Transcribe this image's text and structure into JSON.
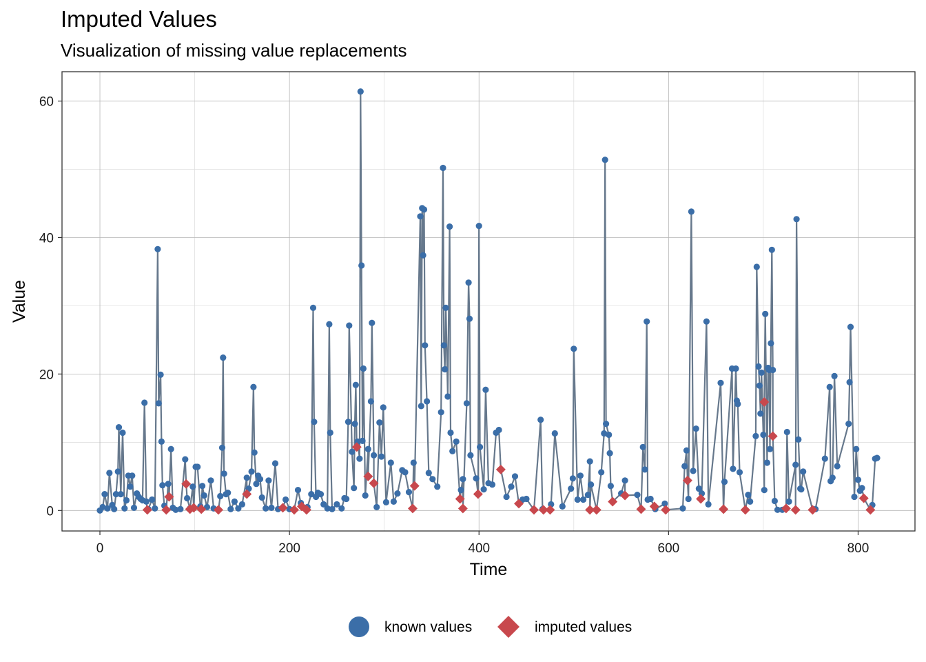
{
  "chart_data": {
    "type": "line",
    "title": "Imputed Values",
    "subtitle": "Visualization of missing value replacements",
    "xlabel": "Time",
    "ylabel": "Value",
    "xlim": [
      -40,
      860
    ],
    "ylim": [
      -3,
      64.3
    ],
    "x_ticks": [
      0,
      200,
      400,
      600,
      800
    ],
    "y_ticks": [
      0,
      20,
      40,
      60
    ],
    "grid": true,
    "legend_position": "bottom",
    "colors": {
      "known": "#3b6ea8",
      "imputed": "#c8484d",
      "line": "#66788c"
    },
    "series": [
      {
        "name": "known values",
        "marker": "circle",
        "points": [
          [
            0,
            0
          ],
          [
            3,
            0.5
          ],
          [
            5,
            2.4
          ],
          [
            8,
            0.3
          ],
          [
            10,
            5.5
          ],
          [
            13,
            0.8
          ],
          [
            15,
            0.2
          ],
          [
            17,
            2.4
          ],
          [
            19,
            5.7
          ],
          [
            20,
            12.2
          ],
          [
            22,
            2.4
          ],
          [
            24,
            11.4
          ],
          [
            26,
            0.3
          ],
          [
            28,
            1.5
          ],
          [
            30,
            5.1
          ],
          [
            32,
            3.5
          ],
          [
            34,
            5.1
          ],
          [
            36,
            0.4
          ],
          [
            39,
            2.5
          ],
          [
            41,
            2.0
          ],
          [
            43,
            1.7
          ],
          [
            45,
            1.5
          ],
          [
            47,
            15.8
          ],
          [
            49,
            1.3
          ],
          [
            51,
            0.2
          ],
          [
            55,
            1.6
          ],
          [
            58,
            0.3
          ],
          [
            61,
            38.3
          ],
          [
            62,
            15.7
          ],
          [
            64,
            19.9
          ],
          [
            65,
            10.1
          ],
          [
            66,
            3.7
          ],
          [
            68,
            0.7
          ],
          [
            72,
            3.9
          ],
          [
            75,
            9.0
          ],
          [
            77,
            0.4
          ],
          [
            80,
            0.1
          ],
          [
            85,
            0.2
          ],
          [
            90,
            7.5
          ],
          [
            92,
            1.8
          ],
          [
            95,
            0.3
          ],
          [
            98,
            3.5
          ],
          [
            101,
            6.4
          ],
          [
            103,
            6.4
          ],
          [
            106,
            0.6
          ],
          [
            108,
            3.6
          ],
          [
            110,
            2.2
          ],
          [
            113,
            0.5
          ],
          [
            117,
            4.4
          ],
          [
            120,
            0.3
          ],
          [
            127,
            2.1
          ],
          [
            129,
            9.2
          ],
          [
            130,
            22.4
          ],
          [
            131,
            5.4
          ],
          [
            133,
            2.4
          ],
          [
            135,
            2.6
          ],
          [
            138,
            0.2
          ],
          [
            142,
            1.3
          ],
          [
            146,
            0.3
          ],
          [
            150,
            0.9
          ],
          [
            155,
            4.8
          ],
          [
            157,
            3.2
          ],
          [
            160,
            5.7
          ],
          [
            162,
            18.1
          ],
          [
            163,
            8.5
          ],
          [
            165,
            3.9
          ],
          [
            167,
            5.1
          ],
          [
            169,
            4.6
          ],
          [
            171,
            1.9
          ],
          [
            175,
            0.3
          ],
          [
            178,
            4.4
          ],
          [
            181,
            0.4
          ],
          [
            185,
            6.9
          ],
          [
            188,
            0.2
          ],
          [
            196,
            1.6
          ],
          [
            200,
            0.2
          ],
          [
            209,
            3.0
          ],
          [
            212,
            1.1
          ],
          [
            219,
            0.5
          ],
          [
            223,
            2.4
          ],
          [
            225,
            29.7
          ],
          [
            226,
            13.0
          ],
          [
            228,
            2.0
          ],
          [
            230,
            2.6
          ],
          [
            233,
            2.4
          ],
          [
            236,
            0.9
          ],
          [
            240,
            0.3
          ],
          [
            242,
            27.3
          ],
          [
            243,
            11.4
          ],
          [
            245,
            0.2
          ],
          [
            250,
            0.9
          ],
          [
            255,
            0.3
          ],
          [
            258,
            1.8
          ],
          [
            260,
            1.7
          ],
          [
            262,
            13.0
          ],
          [
            263,
            27.1
          ],
          [
            266,
            8.6
          ],
          [
            268,
            3.3
          ],
          [
            269,
            12.7
          ],
          [
            270,
            18.4
          ],
          [
            272,
            10.1
          ],
          [
            274,
            7.6
          ],
          [
            275,
            61.4
          ],
          [
            276,
            35.9
          ],
          [
            277,
            10.2
          ],
          [
            278,
            20.8
          ],
          [
            280,
            2.2
          ],
          [
            283,
            9.0
          ],
          [
            286,
            16.0
          ],
          [
            287,
            27.5
          ],
          [
            289,
            8.1
          ],
          [
            292,
            0.5
          ],
          [
            295,
            12.9
          ],
          [
            297,
            7.9
          ],
          [
            299,
            15.1
          ],
          [
            302,
            1.2
          ],
          [
            307,
            7.0
          ],
          [
            310,
            1.3
          ],
          [
            314,
            2.5
          ],
          [
            319,
            5.9
          ],
          [
            322,
            5.6
          ],
          [
            326,
            2.7
          ],
          [
            331,
            7.0
          ],
          [
            338,
            43.1
          ],
          [
            339,
            15.3
          ],
          [
            340,
            44.3
          ],
          [
            341,
            37.4
          ],
          [
            342,
            44.1
          ],
          [
            343,
            24.2
          ],
          [
            345,
            16.0
          ],
          [
            347,
            5.5
          ],
          [
            351,
            4.6
          ],
          [
            356,
            3.5
          ],
          [
            360,
            14.4
          ],
          [
            362,
            50.2
          ],
          [
            363,
            24.2
          ],
          [
            364,
            20.7
          ],
          [
            365,
            29.7
          ],
          [
            367,
            16.7
          ],
          [
            369,
            41.6
          ],
          [
            370,
            11.4
          ],
          [
            372,
            8.7
          ],
          [
            376,
            10.1
          ],
          [
            381,
            3.0
          ],
          [
            383,
            4.6
          ],
          [
            387,
            15.7
          ],
          [
            389,
            33.4
          ],
          [
            390,
            28.1
          ],
          [
            391,
            8.1
          ],
          [
            397,
            4.7
          ],
          [
            400,
            41.7
          ],
          [
            401,
            9.3
          ],
          [
            405,
            3.1
          ],
          [
            407,
            17.7
          ],
          [
            410,
            4.0
          ],
          [
            414,
            3.8
          ],
          [
            418,
            11.4
          ],
          [
            421,
            11.8
          ],
          [
            429,
            2.0
          ],
          [
            434,
            3.5
          ],
          [
            438,
            5.0
          ],
          [
            446,
            1.6
          ],
          [
            450,
            1.7
          ],
          [
            465,
            13.3
          ],
          [
            467,
            0.2
          ],
          [
            476,
            0.9
          ],
          [
            480,
            11.3
          ],
          [
            488,
            0.6
          ],
          [
            497,
            3.2
          ],
          [
            499,
            4.7
          ],
          [
            500,
            23.7
          ],
          [
            504,
            1.6
          ],
          [
            507,
            5.1
          ],
          [
            510,
            1.6
          ],
          [
            515,
            2.3
          ],
          [
            517,
            7.2
          ],
          [
            518,
            3.8
          ],
          [
            529,
            5.6
          ],
          [
            532,
            11.3
          ],
          [
            533,
            51.4
          ],
          [
            534,
            12.7
          ],
          [
            537,
            11.1
          ],
          [
            538,
            8.4
          ],
          [
            539,
            3.6
          ],
          [
            550,
            2.5
          ],
          [
            554,
            4.4
          ],
          [
            567,
            2.3
          ],
          [
            573,
            9.3
          ],
          [
            575,
            6.0
          ],
          [
            577,
            27.7
          ],
          [
            578,
            1.6
          ],
          [
            581,
            1.7
          ],
          [
            586,
            0.2
          ],
          [
            596,
            1.0
          ],
          [
            615,
            0.3
          ],
          [
            617,
            6.5
          ],
          [
            619,
            8.8
          ],
          [
            621,
            1.7
          ],
          [
            624,
            43.8
          ],
          [
            626,
            5.8
          ],
          [
            629,
            12.0
          ],
          [
            632,
            3.2
          ],
          [
            635,
            2.5
          ],
          [
            640,
            27.7
          ],
          [
            642,
            0.9
          ],
          [
            655,
            18.7
          ],
          [
            659,
            4.2
          ],
          [
            667,
            20.8
          ],
          [
            668,
            6.1
          ],
          [
            671,
            20.8
          ],
          [
            672,
            16.1
          ],
          [
            673,
            15.6
          ],
          [
            675,
            5.6
          ],
          [
            684,
            2.3
          ],
          [
            686,
            1.3
          ],
          [
            692,
            10.9
          ],
          [
            693,
            35.7
          ],
          [
            695,
            21.1
          ],
          [
            696,
            18.3
          ],
          [
            697,
            14.2
          ],
          [
            698,
            20.2
          ],
          [
            700,
            11.1
          ],
          [
            701,
            3.0
          ],
          [
            702,
            28.8
          ],
          [
            704,
            7.0
          ],
          [
            705,
            20.9
          ],
          [
            706,
            20.6
          ],
          [
            707,
            9.0
          ],
          [
            708,
            24.5
          ],
          [
            709,
            38.2
          ],
          [
            710,
            20.6
          ],
          [
            712,
            1.4
          ],
          [
            715,
            0.1
          ],
          [
            720,
            0.1
          ],
          [
            725,
            11.5
          ],
          [
            727,
            1.3
          ],
          [
            734,
            6.7
          ],
          [
            735,
            42.7
          ],
          [
            737,
            10.4
          ],
          [
            739,
            3.2
          ],
          [
            740,
            3.1
          ],
          [
            742,
            5.7
          ],
          [
            755,
            0.2
          ],
          [
            765,
            7.6
          ],
          [
            770,
            18.1
          ],
          [
            771,
            4.3
          ],
          [
            773,
            4.8
          ],
          [
            775,
            19.7
          ],
          [
            778,
            6.5
          ],
          [
            790,
            12.7
          ],
          [
            791,
            18.8
          ],
          [
            792,
            26.9
          ],
          [
            796,
            2.0
          ],
          [
            798,
            9.0
          ],
          [
            800,
            4.5
          ],
          [
            802,
            2.9
          ],
          [
            804,
            3.3
          ],
          [
            815,
            0.8
          ],
          [
            818,
            7.6
          ],
          [
            820,
            7.7
          ]
        ]
      },
      {
        "name": "imputed values",
        "marker": "diamond",
        "points": [
          [
            50,
            0.1
          ],
          [
            70,
            0.1
          ],
          [
            73,
            2.0
          ],
          [
            91,
            3.9
          ],
          [
            95,
            0.2
          ],
          [
            99,
            0.4
          ],
          [
            107,
            0.2
          ],
          [
            125,
            0.1
          ],
          [
            155,
            2.4
          ],
          [
            193,
            0.4
          ],
          [
            205,
            0.1
          ],
          [
            213,
            0.6
          ],
          [
            218,
            0.1
          ],
          [
            271,
            9.3
          ],
          [
            283,
            5.0
          ],
          [
            289,
            4.0
          ],
          [
            330,
            0.3
          ],
          [
            332,
            3.6
          ],
          [
            383,
            0.3
          ],
          [
            380,
            1.7
          ],
          [
            399,
            2.4
          ],
          [
            423,
            6.0
          ],
          [
            442,
            1.0
          ],
          [
            458,
            0.1
          ],
          [
            468,
            0.1
          ],
          [
            475,
            0.1
          ],
          [
            517,
            0.1
          ],
          [
            524,
            0.1
          ],
          [
            541,
            1.3
          ],
          [
            554,
            2.2
          ],
          [
            571,
            0.2
          ],
          [
            585,
            0.6
          ],
          [
            597,
            0.1
          ],
          [
            620,
            4.4
          ],
          [
            634,
            1.7
          ],
          [
            658,
            0.2
          ],
          [
            681,
            0.1
          ],
          [
            701,
            15.9
          ],
          [
            710,
            10.9
          ],
          [
            724,
            0.3
          ],
          [
            734,
            0.1
          ],
          [
            752,
            0.1
          ],
          [
            806,
            1.8
          ],
          [
            813,
            0.1
          ]
        ]
      }
    ]
  },
  "legend": {
    "items": [
      {
        "label": "known values",
        "color": "#3b6ea8",
        "shape": "circle"
      },
      {
        "label": "imputed values",
        "color": "#c8484d",
        "shape": "diamond"
      }
    ]
  }
}
